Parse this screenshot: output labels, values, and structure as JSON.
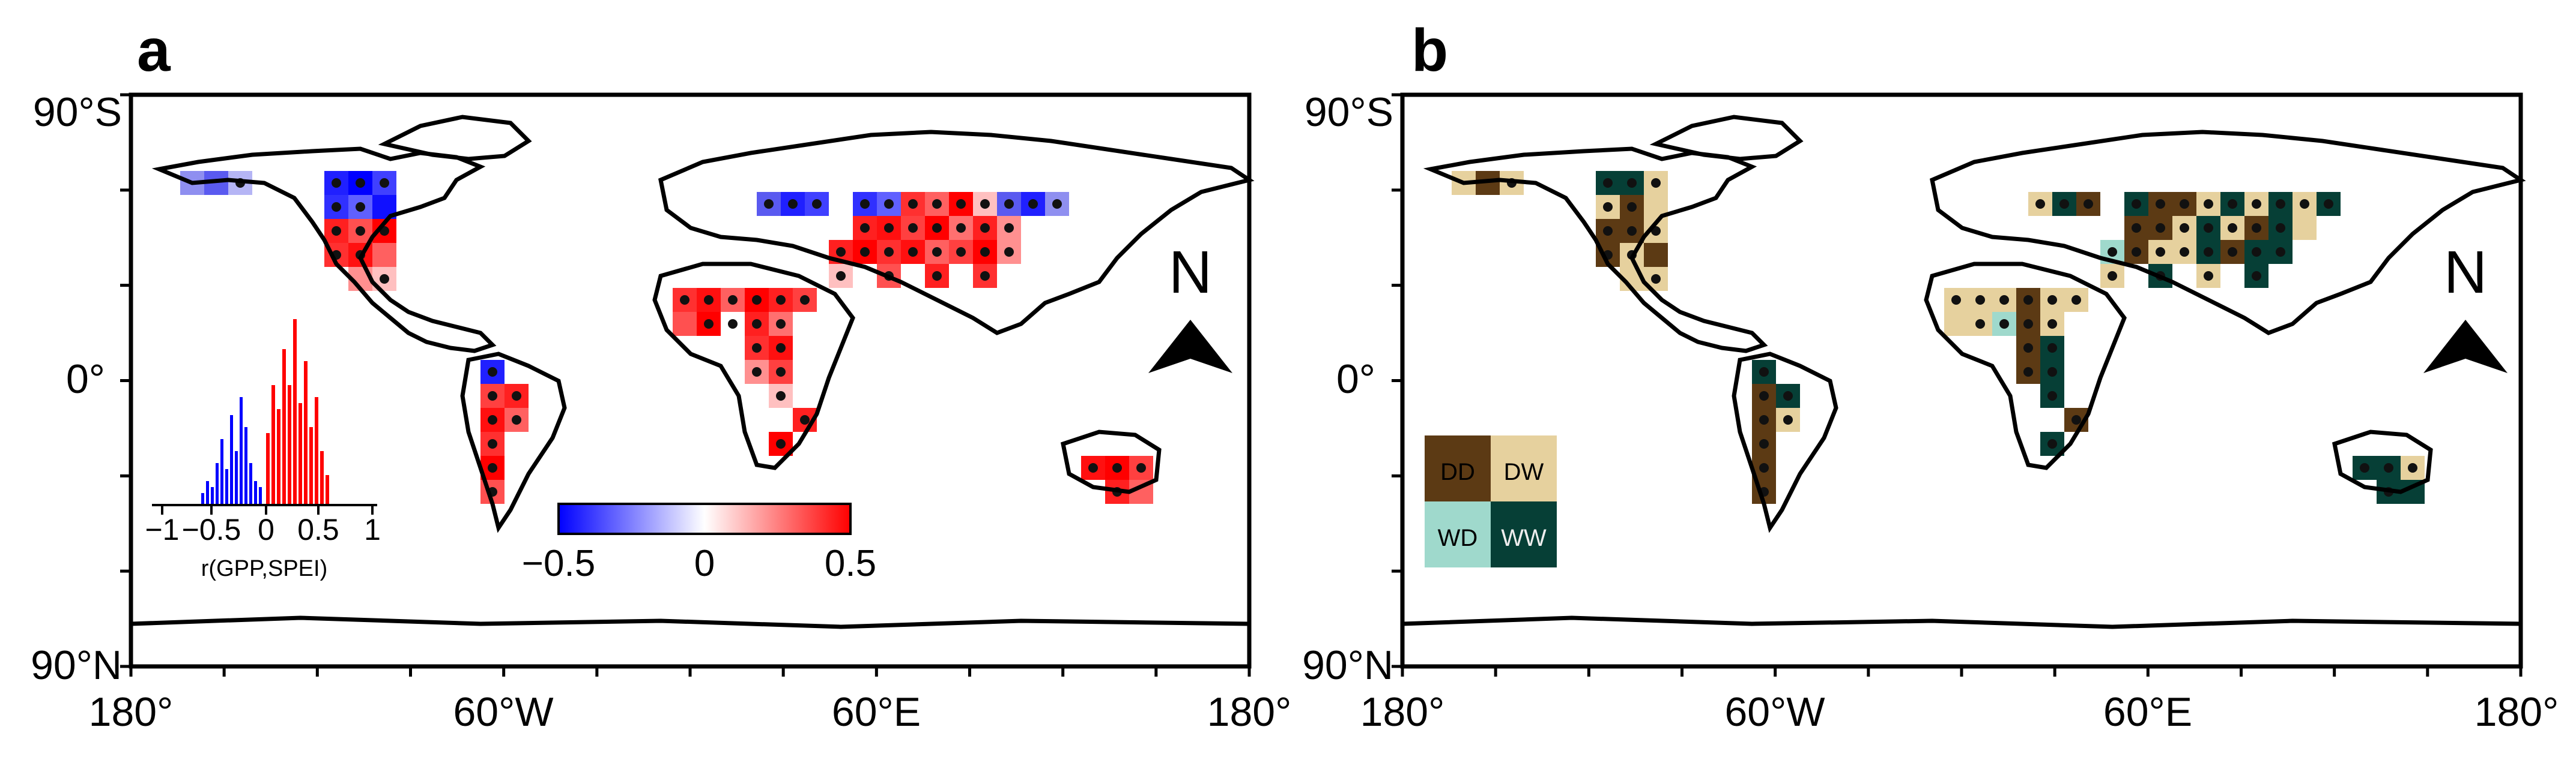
{
  "figure": {
    "panels": [
      {
        "letter": "a",
        "y_labels": [
          "90°S",
          "0°",
          "90°N"
        ],
        "x_labels": [
          "180°",
          "60°W",
          "60°E",
          "180°"
        ],
        "north_label": "N",
        "colorbar": {
          "min_label": "−0.5",
          "mid_label": "0",
          "max_label": "0.5",
          "colors": [
            "#0000ff",
            "#ffffff",
            "#ff0000"
          ]
        },
        "histogram": {
          "tick_labels": [
            "−1",
            "−0.5",
            "0",
            "0.5",
            "1"
          ],
          "xlabel": "r(GPP,SPEI)",
          "negative_color": "#0000ff",
          "positive_color": "#ff0000"
        }
      },
      {
        "letter": "b",
        "y_labels": [
          "90°S",
          "0°",
          "90°N"
        ],
        "x_labels": [
          "180°",
          "60°W",
          "60°E",
          "180°"
        ],
        "north_label": "N",
        "legend": [
          {
            "label": "DD",
            "color": "#5c3a14"
          },
          {
            "label": "DW",
            "color": "#e6d19e"
          },
          {
            "label": "WD",
            "color": "#9fd9cc"
          },
          {
            "label": "WW",
            "color": "#063f36"
          }
        ]
      }
    ],
    "colors": {
      "coast": "#000000",
      "dot": "#111111"
    }
  }
}
